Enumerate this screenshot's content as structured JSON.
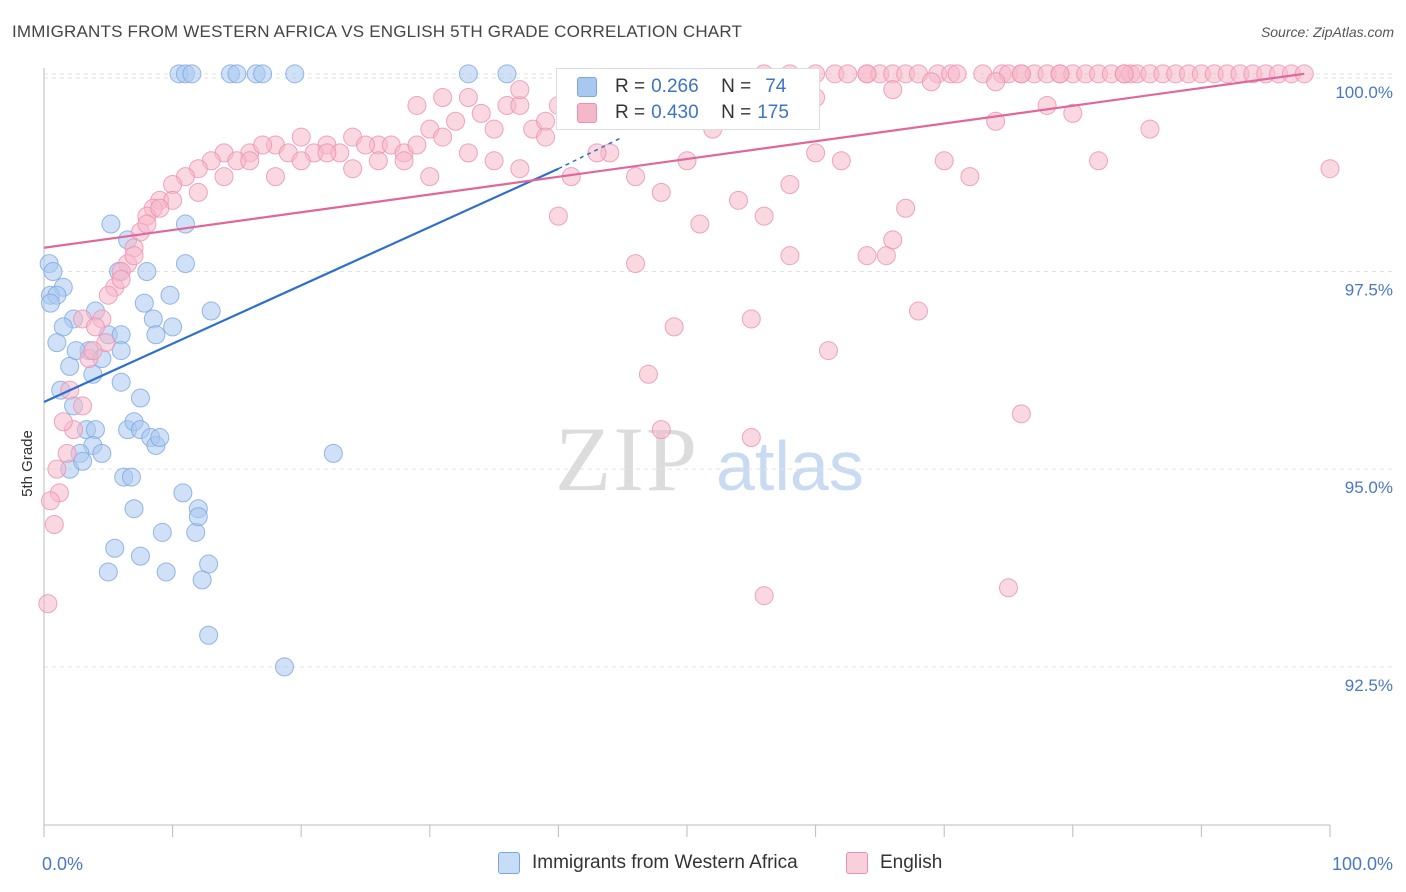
{
  "title": "IMMIGRANTS FROM WESTERN AFRICA VS ENGLISH 5TH GRADE CORRELATION CHART",
  "source": "Source: ZipAtlas.com",
  "watermark": {
    "zip": "ZIP",
    "atlas": "atlas"
  },
  "legend": {
    "rows": [
      {
        "r_label": "R = ",
        "r_value": "0.266",
        "n_label": "N = ",
        "n_value": "74"
      },
      {
        "r_label": "R = ",
        "r_value": "0.430",
        "n_label": "N = ",
        "n_value": "175"
      }
    ]
  },
  "colors": {
    "blue": "#a9c8f0",
    "blue_stroke": "#7aa6e0",
    "blue_line": "#2e6fcb",
    "pink": "#f5b8cb",
    "pink_stroke": "#ec8fb0",
    "pink_line": "#e0679a",
    "axis_text": "#4a78c4"
  },
  "chart_data": {
    "type": "scatter",
    "title": "IMMIGRANTS FROM WESTERN AFRICA VS ENGLISH 5TH GRADE CORRELATION CHART",
    "xlabel": "",
    "ylabel": "5th Grade",
    "xlim": [
      0,
      100
    ],
    "ylim": [
      90.5,
      100.2
    ],
    "x_tick_labels": [
      "0.0%",
      "100.0%"
    ],
    "y_ticks": [
      92.5,
      95.0,
      97.5,
      100.0
    ],
    "y_tick_labels": [
      "92.5%",
      "95.0%",
      "97.5%",
      "100.0%"
    ],
    "series": [
      {
        "name": "Immigrants from Western Africa",
        "color": "blue",
        "R": 0.266,
        "N": 74,
        "trend": {
          "x0": 0,
          "y0": 95.85,
          "x1": 40,
          "y1": 98.8,
          "dash_to_x": 45,
          "dash_to_y": 99.2
        },
        "points": [
          [
            10.5,
            100
          ],
          [
            11,
            100
          ],
          [
            11.5,
            100
          ],
          [
            14.5,
            100
          ],
          [
            15,
            100
          ],
          [
            16.5,
            100
          ],
          [
            17,
            100
          ],
          [
            19.5,
            100
          ],
          [
            33,
            100
          ],
          [
            36,
            100
          ],
          [
            5.2,
            98.1
          ],
          [
            11,
            98.1
          ],
          [
            6.5,
            97.9
          ],
          [
            0.4,
            97.6
          ],
          [
            0.7,
            97.5
          ],
          [
            8,
            97.5
          ],
          [
            11,
            97.6
          ],
          [
            1.5,
            97.3
          ],
          [
            0.5,
            97.2
          ],
          [
            1,
            97.2
          ],
          [
            0.5,
            97.1
          ],
          [
            7.8,
            97.1
          ],
          [
            9.8,
            97.2
          ],
          [
            4,
            97
          ],
          [
            13,
            97
          ],
          [
            2.3,
            96.9
          ],
          [
            1.5,
            96.8
          ],
          [
            8.5,
            96.9
          ],
          [
            10,
            96.8
          ],
          [
            5,
            96.7
          ],
          [
            6,
            96.7
          ],
          [
            8.7,
            96.7
          ],
          [
            6,
            96.5
          ],
          [
            1,
            96.6
          ],
          [
            3.5,
            96.5
          ],
          [
            4.5,
            96.4
          ],
          [
            2,
            96.3
          ],
          [
            3.8,
            96.2
          ],
          [
            6,
            96.1
          ],
          [
            1.3,
            96.0
          ],
          [
            7.5,
            95.9
          ],
          [
            2.3,
            95.8
          ],
          [
            6.5,
            95.5
          ],
          [
            7,
            95.6
          ],
          [
            7.5,
            95.5
          ],
          [
            3.3,
            95.5
          ],
          [
            4,
            95.5
          ],
          [
            8.3,
            95.4
          ],
          [
            3.8,
            95.3
          ],
          [
            8.7,
            95.3
          ],
          [
            4.5,
            95.2
          ],
          [
            2.8,
            95.2
          ],
          [
            22.5,
            95.2
          ],
          [
            6.2,
            94.9
          ],
          [
            10.8,
            94.7
          ],
          [
            7,
            94.5
          ],
          [
            12,
            94.5
          ],
          [
            9.2,
            94.2
          ],
          [
            11.8,
            94.2
          ],
          [
            5.5,
            94.0
          ],
          [
            7.5,
            93.9
          ],
          [
            12.8,
            93.8
          ],
          [
            5,
            93.7
          ],
          [
            9.5,
            93.7
          ],
          [
            12.3,
            93.6
          ],
          [
            12.8,
            92.9
          ],
          [
            18.7,
            92.5
          ],
          [
            2,
            95.0
          ],
          [
            3,
            95.1
          ],
          [
            9,
            95.4
          ],
          [
            12,
            94.4
          ],
          [
            6.8,
            94.9
          ],
          [
            2.5,
            96.5
          ],
          [
            5.8,
            97.5
          ]
        ]
      },
      {
        "name": "English",
        "color": "pink",
        "R": 0.43,
        "N": 175,
        "trend": {
          "x0": 0,
          "y0": 97.8,
          "x1": 98,
          "y1": 100
        },
        "points": [
          [
            60,
            100
          ],
          [
            61.5,
            100
          ],
          [
            62.5,
            100
          ],
          [
            64,
            100
          ],
          [
            65,
            100
          ],
          [
            66,
            100
          ],
          [
            67,
            100
          ],
          [
            68,
            100
          ],
          [
            69.5,
            100
          ],
          [
            70.5,
            100
          ],
          [
            71,
            100
          ],
          [
            73,
            100
          ],
          [
            74.5,
            100
          ],
          [
            75,
            100
          ],
          [
            76,
            100
          ],
          [
            77,
            100
          ],
          [
            78,
            100
          ],
          [
            79,
            100
          ],
          [
            80,
            100
          ],
          [
            81,
            100
          ],
          [
            82,
            100
          ],
          [
            83,
            100
          ],
          [
            84,
            100
          ],
          [
            84.5,
            100
          ],
          [
            85,
            100
          ],
          [
            86,
            100
          ],
          [
            87,
            100
          ],
          [
            88,
            100
          ],
          [
            89,
            100
          ],
          [
            90,
            100
          ],
          [
            91,
            100
          ],
          [
            92,
            100
          ],
          [
            93,
            100
          ],
          [
            94,
            100
          ],
          [
            95,
            100
          ],
          [
            96,
            100
          ],
          [
            97,
            100
          ],
          [
            98,
            100
          ],
          [
            58,
            100
          ],
          [
            56,
            100
          ],
          [
            69,
            99.9
          ],
          [
            74,
            99.9
          ],
          [
            79,
            100
          ],
          [
            50,
            99.8
          ],
          [
            54,
            99.7
          ],
          [
            56,
            99.8
          ],
          [
            57,
            99.7
          ],
          [
            40,
            99.6
          ],
          [
            42,
            99.6
          ],
          [
            43,
            99.5
          ],
          [
            45,
            99.5
          ],
          [
            48,
            99.6
          ],
          [
            52,
            99.5
          ],
          [
            36,
            99.6
          ],
          [
            37,
            99.6
          ],
          [
            34,
            99.5
          ],
          [
            32,
            99.4
          ],
          [
            35,
            99.3
          ],
          [
            38,
            99.3
          ],
          [
            39,
            99.4
          ],
          [
            30,
            99.3
          ],
          [
            31,
            99.2
          ],
          [
            26,
            99.1
          ],
          [
            27,
            99.1
          ],
          [
            28,
            99.0
          ],
          [
            29,
            99.1
          ],
          [
            24,
            99.2
          ],
          [
            25,
            99.1
          ],
          [
            22,
            99.1
          ],
          [
            23,
            99.0
          ],
          [
            20,
            99.2
          ],
          [
            21,
            99.0
          ],
          [
            18,
            99.1
          ],
          [
            19,
            99.0
          ],
          [
            16,
            99.0
          ],
          [
            17,
            99.1
          ],
          [
            14,
            99.0
          ],
          [
            15,
            98.9
          ],
          [
            13,
            98.9
          ],
          [
            12,
            98.8
          ],
          [
            11,
            98.7
          ],
          [
            10,
            98.6
          ],
          [
            9,
            98.4
          ],
          [
            8.5,
            98.3
          ],
          [
            8,
            98.2
          ],
          [
            7.5,
            98.0
          ],
          [
            7,
            97.8
          ],
          [
            6.5,
            97.6
          ],
          [
            6,
            97.5
          ],
          [
            5.5,
            97.3
          ],
          [
            4.5,
            96.9
          ],
          [
            4.8,
            96.6
          ],
          [
            3.5,
            96.4
          ],
          [
            3,
            95.8
          ],
          [
            2.3,
            95.5
          ],
          [
            1.8,
            95.2
          ],
          [
            1.2,
            94.7
          ],
          [
            0.8,
            94.3
          ],
          [
            0.3,
            93.3
          ],
          [
            3.8,
            96.5
          ],
          [
            40,
            98.2
          ],
          [
            42,
            99.5
          ],
          [
            44,
            99.0
          ],
          [
            46,
            98.7
          ],
          [
            48,
            98.5
          ],
          [
            50,
            98.9
          ],
          [
            52,
            99.3
          ],
          [
            54,
            98.4
          ],
          [
            56,
            98.2
          ],
          [
            58,
            98.6
          ],
          [
            60,
            99.0
          ],
          [
            62,
            98.9
          ],
          [
            64,
            97.7
          ],
          [
            65.5,
            97.7
          ],
          [
            70,
            98.9
          ],
          [
            72,
            98.7
          ],
          [
            74,
            99.4
          ],
          [
            76,
            100
          ],
          [
            78,
            99.6
          ],
          [
            80,
            99.5
          ],
          [
            82,
            98.9
          ],
          [
            84,
            100
          ],
          [
            86,
            99.3
          ],
          [
            100,
            98.8
          ],
          [
            46,
            97.6
          ],
          [
            51,
            98.1
          ],
          [
            55,
            96.9
          ],
          [
            58,
            97.7
          ],
          [
            61,
            96.5
          ],
          [
            68,
            97.0
          ],
          [
            47,
            96.2
          ],
          [
            48,
            95.5
          ],
          [
            55,
            95.4
          ],
          [
            56,
            93.4
          ],
          [
            75,
            93.5
          ],
          [
            76,
            95.7
          ],
          [
            49,
            96.8
          ],
          [
            60,
            99.7
          ],
          [
            66,
            97.9
          ],
          [
            67,
            98.3
          ],
          [
            33,
            99.0
          ],
          [
            35,
            98.9
          ],
          [
            37,
            98.8
          ],
          [
            39,
            99.2
          ],
          [
            41,
            98.7
          ],
          [
            43,
            99.0
          ],
          [
            26,
            98.9
          ],
          [
            28,
            98.9
          ],
          [
            30,
            98.7
          ],
          [
            22,
            99.0
          ],
          [
            24,
            98.8
          ],
          [
            20,
            98.9
          ],
          [
            18,
            98.7
          ],
          [
            16,
            98.9
          ],
          [
            14,
            98.7
          ],
          [
            12,
            98.5
          ],
          [
            10,
            98.4
          ],
          [
            8,
            98.1
          ],
          [
            9,
            98.3
          ],
          [
            7,
            97.7
          ],
          [
            6,
            97.4
          ],
          [
            5,
            97.2
          ],
          [
            3,
            96.9
          ],
          [
            4,
            96.8
          ],
          [
            2,
            96.0
          ],
          [
            1.5,
            95.6
          ],
          [
            1,
            95.0
          ],
          [
            0.5,
            94.6
          ],
          [
            44,
            99.8
          ],
          [
            37,
            99.8
          ],
          [
            64,
            100
          ],
          [
            66,
            99.8
          ],
          [
            33,
            99.7
          ],
          [
            31,
            99.7
          ],
          [
            29,
            99.6
          ]
        ]
      }
    ]
  },
  "bottom_legend": [
    {
      "label": "Immigrants from Western Africa"
    },
    {
      "label": "English"
    }
  ]
}
